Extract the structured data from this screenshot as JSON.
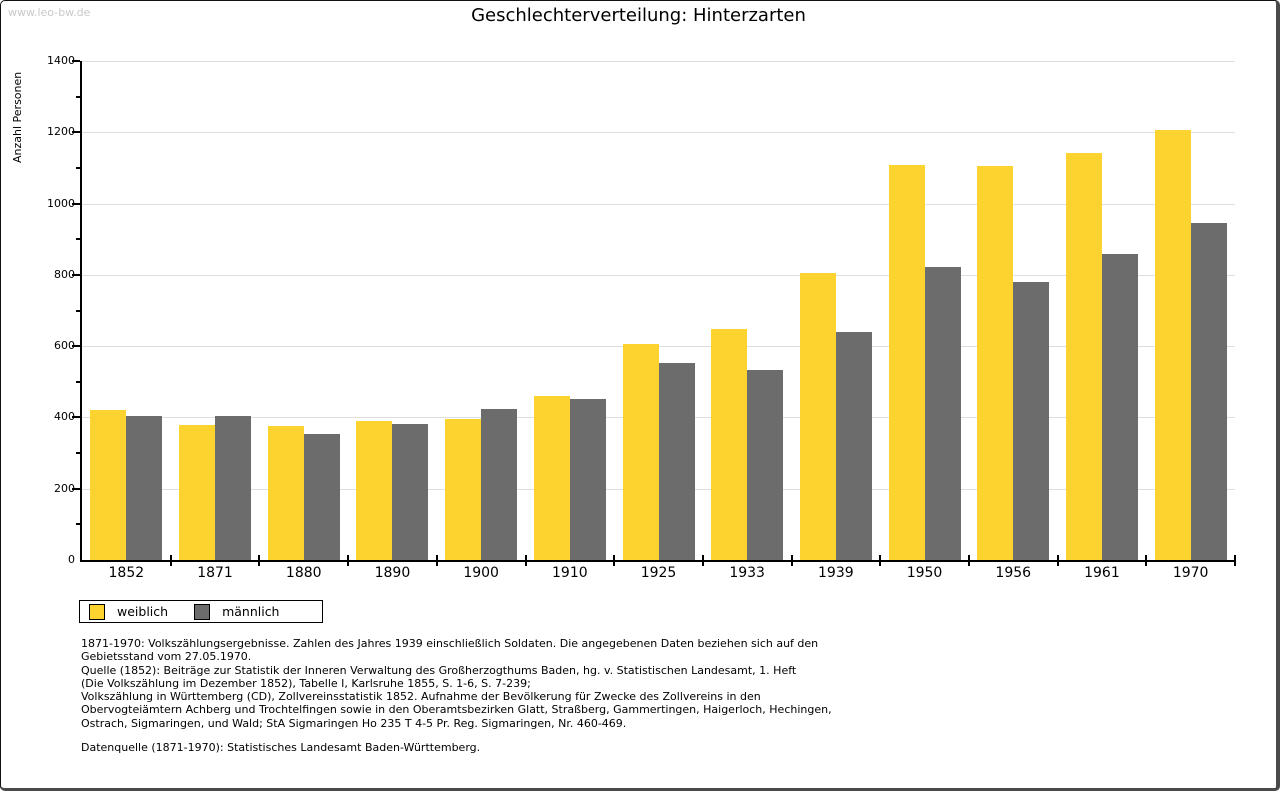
{
  "page": {
    "watermark": "www.leo-bw.de"
  },
  "chart_data": {
    "type": "bar",
    "title": "Geschlechterverteilung: Hinterzarten",
    "ylabel": "Anzahl Personen",
    "xlabel": "",
    "ylim": [
      0,
      1400
    ],
    "yticks": [
      0,
      200,
      400,
      600,
      800,
      1000,
      1200,
      1400
    ],
    "minor_ytick_step": 100,
    "grid": true,
    "legend_position": "bottom-left",
    "categories": [
      "1852",
      "1871",
      "1880",
      "1890",
      "1900",
      "1910",
      "1925",
      "1933",
      "1939",
      "1950",
      "1956",
      "1961",
      "1970"
    ],
    "series": [
      {
        "name": "weiblich",
        "color": "#FCD32F",
        "values": [
          420,
          380,
          377,
          391,
          395,
          460,
          607,
          648,
          805,
          1108,
          1105,
          1142,
          1207
        ]
      },
      {
        "name": "männlich",
        "color": "#6C6C6C",
        "values": [
          403,
          404,
          355,
          381,
          425,
          452,
          553,
          534,
          640,
          822,
          779,
          860,
          947
        ]
      }
    ]
  },
  "footnotes": {
    "lines": [
      "1871-1970: Volkszählungsergebnisse. Zahlen des Jahres 1939 einschließlich Soldaten. Die angegebenen Daten beziehen sich auf den",
      "Gebietsstand vom 27.05.1970.",
      "Quelle (1852): Beiträge zur Statistik der Inneren Verwaltung des Großherzogthums Baden, hg. v. Statistischen Landesamt, 1. Heft",
      "(Die Volkszählung im Dezember 1852), Tabelle I, Karlsruhe 1855, S. 1-6, S. 7-239;",
      "Volkszählung in Württemberg (CD), Zollvereinsstatistik 1852. Aufnahme der Bevölkerung für Zwecke des Zollvereins in den",
      "Obervogteiämtern Achberg und Trochtelfingen sowie in den Oberamtsbezirken Glatt, Straßberg, Gammertingen, Haigerloch, Hechingen,",
      "Ostrach, Sigmaringen, und Wald; StA Sigmaringen Ho 235 T 4-5 Pr. Reg. Sigmaringen, Nr. 460-469."
    ],
    "datasource": "Datenquelle (1871-1970): Statistisches Landesamt Baden-Württemberg."
  },
  "colors": {
    "grid": "#DEDEDE",
    "axis": "#000000",
    "watermark": "#C9C9C9",
    "weiblich": "#FCD32F",
    "maennlich": "#6C6C6C"
  }
}
